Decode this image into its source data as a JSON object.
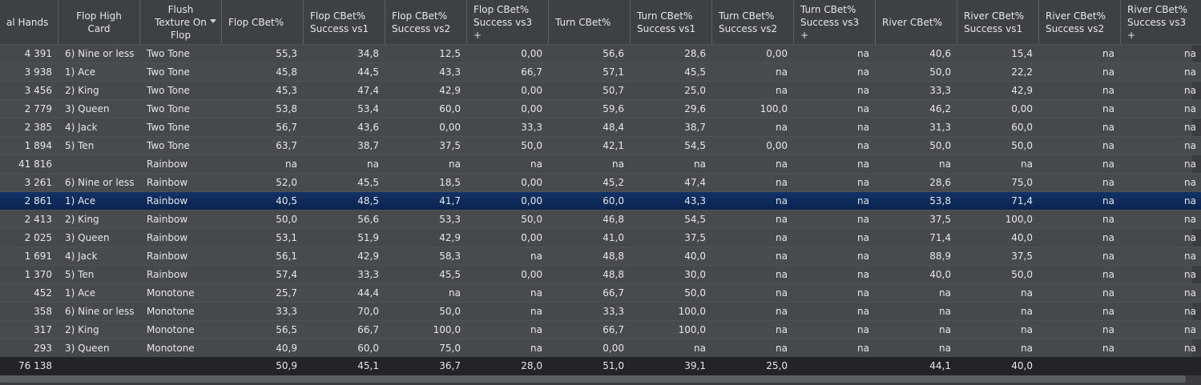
{
  "table": {
    "columns": [
      "al Hands",
      "Flop High\nCard",
      "Flush\nTexture On\nFlop",
      "Flop CBet%",
      "Flop CBet%\nSuccess vs1",
      "Flop CBet%\nSuccess vs2",
      "Flop CBet%\nSuccess vs3\n+",
      "Turn CBet%",
      "Turn CBet%\nSuccess vs1",
      "Turn CBet%\nSuccess vs2",
      "Turn CBet%\nSuccess vs3\n+",
      "River CBet%",
      "River CBet%\nSuccess vs1",
      "River CBet%\nSuccess vs2",
      "River CBet%\nSuccess vs3\n+"
    ],
    "rows": [
      [
        "4 391",
        "6) Nine or less",
        "Two Tone",
        "55,3",
        "34,8",
        "12,5",
        "0,00",
        "56,6",
        "28,6",
        "0,00",
        "na",
        "40,6",
        "15,4",
        "na",
        "na"
      ],
      [
        "3 938",
        "1) Ace",
        "Two Tone",
        "45,8",
        "44,5",
        "43,3",
        "66,7",
        "57,1",
        "45,5",
        "na",
        "na",
        "50,0",
        "22,2",
        "na",
        "na"
      ],
      [
        "3 456",
        "2) King",
        "Two Tone",
        "45,3",
        "47,4",
        "42,9",
        "0,00",
        "50,7",
        "25,0",
        "na",
        "na",
        "33,3",
        "42,9",
        "na",
        "na"
      ],
      [
        "2 779",
        "3) Queen",
        "Two Tone",
        "53,8",
        "53,4",
        "60,0",
        "0,00",
        "59,6",
        "29,6",
        "100,0",
        "na",
        "46,2",
        "0,00",
        "na",
        "na"
      ],
      [
        "2 385",
        "4) Jack",
        "Two Tone",
        "56,7",
        "43,6",
        "0,00",
        "33,3",
        "48,4",
        "38,7",
        "na",
        "na",
        "31,3",
        "60,0",
        "na",
        "na"
      ],
      [
        "1 894",
        "5) Ten",
        "Two Tone",
        "63,7",
        "38,7",
        "37,5",
        "50,0",
        "42,1",
        "54,5",
        "0,00",
        "na",
        "50,0",
        "50,0",
        "na",
        "na"
      ],
      [
        "41 816",
        null,
        "Rainbow",
        "na",
        "na",
        "na",
        "na",
        "na",
        "na",
        "na",
        "na",
        "na",
        "na",
        "na",
        "na"
      ],
      [
        "3 261",
        "6) Nine or less",
        "Rainbow",
        "52,0",
        "45,5",
        "18,5",
        "0,00",
        "45,2",
        "47,4",
        "na",
        "na",
        "28,6",
        "75,0",
        "na",
        "na"
      ],
      [
        "2 861",
        "1) Ace",
        "Rainbow",
        "40,5",
        "48,5",
        "41,7",
        "0,00",
        "60,0",
        "43,3",
        "na",
        "na",
        "53,8",
        "71,4",
        "na",
        "na"
      ],
      [
        "2 413",
        "2) King",
        "Rainbow",
        "50,0",
        "56,6",
        "53,3",
        "50,0",
        "46,8",
        "54,5",
        "na",
        "na",
        "37,5",
        "100,0",
        "na",
        "na"
      ],
      [
        "2 025",
        "3) Queen",
        "Rainbow",
        "53,1",
        "51,9",
        "42,9",
        "0,00",
        "41,0",
        "37,5",
        "na",
        "na",
        "71,4",
        "40,0",
        "na",
        "na"
      ],
      [
        "1 691",
        "4) Jack",
        "Rainbow",
        "56,1",
        "42,9",
        "58,3",
        "na",
        "48,8",
        "40,0",
        "na",
        "na",
        "88,9",
        "37,5",
        "na",
        "na"
      ],
      [
        "1 370",
        "5) Ten",
        "Rainbow",
        "57,4",
        "33,3",
        "45,5",
        "0,00",
        "48,8",
        "30,0",
        "na",
        "na",
        "40,0",
        "50,0",
        "na",
        "na"
      ],
      [
        "452",
        "1) Ace",
        "Monotone",
        "25,7",
        "44,4",
        "na",
        "na",
        "66,7",
        "50,0",
        "na",
        "na",
        "na",
        "na",
        "na",
        "na"
      ],
      [
        "358",
        "6) Nine or less",
        "Monotone",
        "33,3",
        "70,0",
        "50,0",
        "na",
        "33,3",
        "100,0",
        "na",
        "na",
        "na",
        "na",
        "na",
        "na"
      ],
      [
        "317",
        "2) King",
        "Monotone",
        "56,5",
        "66,7",
        "100,0",
        "na",
        "66,7",
        "100,0",
        "na",
        "na",
        "na",
        "na",
        "na",
        "na"
      ],
      [
        "293",
        "3) Queen",
        "Monotone",
        "40,9",
        "60,0",
        "75,0",
        "na",
        "0,00",
        "na",
        "na",
        "na",
        "na",
        "na",
        "na",
        "na"
      ]
    ],
    "selected_row": 8,
    "totals": [
      "76 138",
      null,
      null,
      "50,9",
      "45,1",
      "36,7",
      "28,0",
      "51,0",
      "39,1",
      "25,0",
      null,
      "44,1",
      "40,0",
      null,
      null
    ]
  }
}
